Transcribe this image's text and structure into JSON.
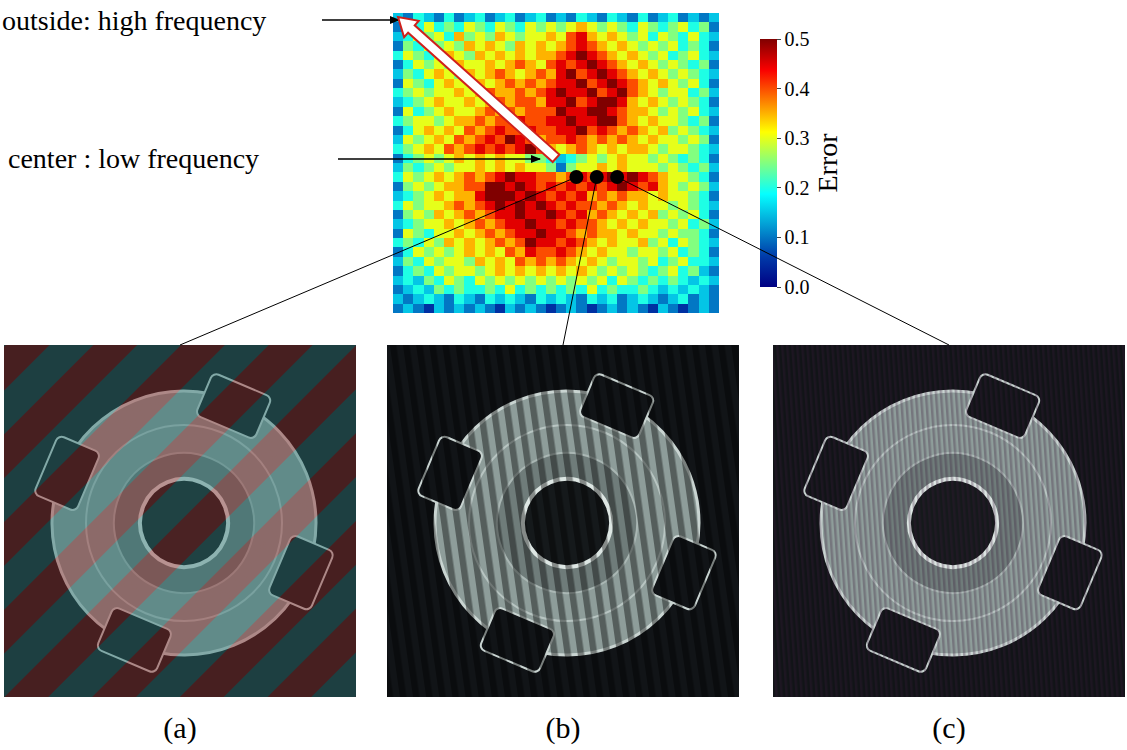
{
  "chart_data": {
    "type": "heatmap",
    "tick_labels": false,
    "z": [
      [
        0.15,
        0.1,
        0.2,
        0.15,
        0.1,
        0.2,
        0.1,
        0.15,
        0.2,
        0.1,
        0.15,
        0.2,
        0.1,
        0.15,
        0.2,
        0.1,
        0.15,
        0.1,
        0.2,
        0.15,
        0.1,
        0.2,
        0.15,
        0.1,
        0.2,
        0.1,
        0.15,
        0.2,
        0.1,
        0.15,
        0.1,
        0.15
      ],
      [
        0.1,
        0.25,
        0.2,
        0.3,
        0.2,
        0.25,
        0.2,
        0.3,
        0.25,
        0.2,
        0.3,
        0.25,
        0.2,
        0.3,
        0.25,
        0.3,
        0.25,
        0.3,
        0.35,
        0.3,
        0.25,
        0.3,
        0.25,
        0.2,
        0.3,
        0.25,
        0.2,
        0.25,
        0.3,
        0.2,
        0.25,
        0.1
      ],
      [
        0.15,
        0.2,
        0.3,
        0.25,
        0.3,
        0.2,
        0.35,
        0.25,
        0.3,
        0.25,
        0.35,
        0.3,
        0.25,
        0.3,
        0.3,
        0.35,
        0.3,
        0.4,
        0.45,
        0.35,
        0.3,
        0.35,
        0.3,
        0.25,
        0.3,
        0.2,
        0.3,
        0.25,
        0.2,
        0.3,
        0.2,
        0.15
      ],
      [
        0.1,
        0.25,
        0.2,
        0.3,
        0.25,
        0.3,
        0.25,
        0.35,
        0.3,
        0.35,
        0.3,
        0.25,
        0.35,
        0.3,
        0.35,
        0.3,
        0.35,
        0.4,
        0.45,
        0.4,
        0.35,
        0.3,
        0.35,
        0.3,
        0.25,
        0.3,
        0.25,
        0.3,
        0.2,
        0.25,
        0.2,
        0.1
      ],
      [
        0.2,
        0.3,
        0.25,
        0.2,
        0.3,
        0.35,
        0.3,
        0.25,
        0.35,
        0.3,
        0.35,
        0.3,
        0.35,
        0.3,
        0.35,
        0.35,
        0.4,
        0.45,
        0.5,
        0.45,
        0.4,
        0.35,
        0.3,
        0.35,
        0.3,
        0.25,
        0.3,
        0.2,
        0.25,
        0.3,
        0.2,
        0.15
      ],
      [
        0.1,
        0.2,
        0.3,
        0.25,
        0.3,
        0.25,
        0.35,
        0.3,
        0.3,
        0.35,
        0.3,
        0.35,
        0.4,
        0.35,
        0.3,
        0.4,
        0.45,
        0.4,
        0.45,
        0.5,
        0.45,
        0.4,
        0.35,
        0.3,
        0.35,
        0.3,
        0.25,
        0.3,
        0.25,
        0.2,
        0.25,
        0.1
      ],
      [
        0.15,
        0.25,
        0.2,
        0.3,
        0.35,
        0.3,
        0.25,
        0.35,
        0.3,
        0.35,
        0.4,
        0.35,
        0.3,
        0.35,
        0.4,
        0.35,
        0.45,
        0.5,
        0.4,
        0.45,
        0.5,
        0.45,
        0.4,
        0.35,
        0.3,
        0.35,
        0.3,
        0.25,
        0.3,
        0.25,
        0.2,
        0.15
      ],
      [
        0.1,
        0.3,
        0.25,
        0.2,
        0.3,
        0.35,
        0.3,
        0.3,
        0.35,
        0.3,
        0.35,
        0.4,
        0.35,
        0.4,
        0.35,
        0.4,
        0.45,
        0.45,
        0.5,
        0.4,
        0.45,
        0.5,
        0.45,
        0.4,
        0.35,
        0.3,
        0.35,
        0.3,
        0.25,
        0.3,
        0.2,
        0.1
      ],
      [
        0.2,
        0.25,
        0.3,
        0.25,
        0.3,
        0.3,
        0.35,
        0.3,
        0.35,
        0.4,
        0.35,
        0.35,
        0.4,
        0.35,
        0.4,
        0.45,
        0.5,
        0.45,
        0.45,
        0.5,
        0.4,
        0.45,
        0.5,
        0.4,
        0.35,
        0.3,
        0.25,
        0.3,
        0.3,
        0.2,
        0.25,
        0.15
      ],
      [
        0.15,
        0.2,
        0.25,
        0.3,
        0.35,
        0.3,
        0.3,
        0.35,
        0.3,
        0.35,
        0.4,
        0.35,
        0.4,
        0.4,
        0.35,
        0.45,
        0.45,
        0.5,
        0.4,
        0.45,
        0.5,
        0.5,
        0.45,
        0.35,
        0.3,
        0.35,
        0.3,
        0.25,
        0.3,
        0.25,
        0.2,
        0.1
      ],
      [
        0.1,
        0.3,
        0.2,
        0.25,
        0.3,
        0.35,
        0.3,
        0.3,
        0.35,
        0.4,
        0.35,
        0.4,
        0.35,
        0.4,
        0.4,
        0.4,
        0.5,
        0.45,
        0.45,
        0.5,
        0.5,
        0.45,
        0.4,
        0.35,
        0.35,
        0.3,
        0.25,
        0.3,
        0.25,
        0.3,
        0.2,
        0.15
      ],
      [
        0.2,
        0.25,
        0.3,
        0.3,
        0.25,
        0.3,
        0.35,
        0.35,
        0.4,
        0.35,
        0.4,
        0.4,
        0.45,
        0.4,
        0.4,
        0.45,
        0.45,
        0.5,
        0.45,
        0.45,
        0.5,
        0.5,
        0.4,
        0.35,
        0.3,
        0.35,
        0.3,
        0.3,
        0.25,
        0.2,
        0.25,
        0.1
      ],
      [
        0.1,
        0.2,
        0.3,
        0.35,
        0.3,
        0.35,
        0.3,
        0.4,
        0.35,
        0.4,
        0.45,
        0.4,
        0.4,
        0.45,
        0.4,
        0.4,
        0.45,
        0.45,
        0.5,
        0.4,
        0.45,
        0.4,
        0.35,
        0.4,
        0.35,
        0.3,
        0.35,
        0.25,
        0.3,
        0.25,
        0.2,
        0.15
      ],
      [
        0.15,
        0.3,
        0.25,
        0.3,
        0.35,
        0.3,
        0.4,
        0.35,
        0.4,
        0.45,
        0.4,
        0.5,
        0.45,
        0.4,
        0.35,
        0.4,
        0.4,
        0.45,
        0.4,
        0.35,
        0.4,
        0.35,
        0.4,
        0.35,
        0.3,
        0.35,
        0.3,
        0.3,
        0.25,
        0.3,
        0.25,
        0.1
      ],
      [
        0.2,
        0.25,
        0.3,
        0.35,
        0.3,
        0.4,
        0.35,
        0.4,
        0.45,
        0.4,
        0.45,
        0.4,
        0.45,
        0.5,
        0.4,
        0.35,
        0.3,
        0.35,
        0.4,
        0.35,
        0.3,
        0.35,
        0.3,
        0.35,
        0.35,
        0.3,
        0.25,
        0.3,
        0.3,
        0.25,
        0.2,
        0.15
      ],
      [
        0.1,
        0.2,
        0.25,
        0.3,
        0.25,
        0.3,
        0.35,
        0.3,
        0.35,
        0.3,
        0.35,
        0.3,
        0.3,
        0.25,
        0.25,
        0.2,
        0.15,
        0.2,
        0.25,
        0.3,
        0.25,
        0.3,
        0.35,
        0.3,
        0.3,
        0.25,
        0.3,
        0.25,
        0.2,
        0.25,
        0.2,
        0.1
      ],
      [
        0.15,
        0.25,
        0.2,
        0.25,
        0.3,
        0.25,
        0.3,
        0.3,
        0.35,
        0.3,
        0.35,
        0.3,
        0.35,
        0.3,
        0.3,
        0.25,
        0.1,
        0.25,
        0.3,
        0.3,
        0.35,
        0.3,
        0.35,
        0.3,
        0.3,
        0.3,
        0.25,
        0.3,
        0.25,
        0.2,
        0.25,
        0.15
      ],
      [
        0.2,
        0.3,
        0.25,
        0.3,
        0.35,
        0.3,
        0.35,
        0.4,
        0.35,
        0.4,
        0.45,
        0.5,
        0.45,
        0.45,
        0.4,
        0.4,
        0.35,
        0.4,
        0.45,
        0.4,
        0.45,
        0.5,
        0.45,
        0.5,
        0.45,
        0.4,
        0.35,
        0.3,
        0.3,
        0.25,
        0.2,
        0.1
      ],
      [
        0.1,
        0.25,
        0.3,
        0.25,
        0.3,
        0.35,
        0.35,
        0.4,
        0.4,
        0.5,
        0.5,
        0.45,
        0.5,
        0.45,
        0.4,
        0.45,
        0.4,
        0.45,
        0.4,
        0.45,
        0.4,
        0.45,
        0.5,
        0.45,
        0.4,
        0.45,
        0.35,
        0.3,
        0.25,
        0.3,
        0.25,
        0.15
      ],
      [
        0.15,
        0.2,
        0.25,
        0.3,
        0.35,
        0.3,
        0.35,
        0.35,
        0.45,
        0.5,
        0.5,
        0.5,
        0.45,
        0.5,
        0.45,
        0.4,
        0.45,
        0.4,
        0.45,
        0.35,
        0.4,
        0.35,
        0.4,
        0.35,
        0.35,
        0.3,
        0.35,
        0.3,
        0.3,
        0.25,
        0.2,
        0.1
      ],
      [
        0.2,
        0.3,
        0.25,
        0.3,
        0.3,
        0.35,
        0.4,
        0.35,
        0.4,
        0.45,
        0.5,
        0.45,
        0.5,
        0.45,
        0.5,
        0.45,
        0.4,
        0.45,
        0.4,
        0.4,
        0.35,
        0.4,
        0.35,
        0.3,
        0.35,
        0.3,
        0.3,
        0.25,
        0.3,
        0.25,
        0.2,
        0.15
      ],
      [
        0.1,
        0.25,
        0.3,
        0.25,
        0.35,
        0.3,
        0.35,
        0.4,
        0.35,
        0.4,
        0.45,
        0.45,
        0.5,
        0.45,
        0.45,
        0.5,
        0.45,
        0.4,
        0.45,
        0.35,
        0.4,
        0.35,
        0.3,
        0.35,
        0.3,
        0.35,
        0.25,
        0.3,
        0.25,
        0.3,
        0.2,
        0.1
      ],
      [
        0.15,
        0.2,
        0.25,
        0.3,
        0.3,
        0.35,
        0.3,
        0.35,
        0.4,
        0.35,
        0.4,
        0.45,
        0.45,
        0.5,
        0.45,
        0.45,
        0.4,
        0.45,
        0.4,
        0.4,
        0.35,
        0.3,
        0.35,
        0.3,
        0.35,
        0.3,
        0.3,
        0.25,
        0.3,
        0.2,
        0.25,
        0.15
      ],
      [
        0.1,
        0.3,
        0.25,
        0.2,
        0.3,
        0.3,
        0.35,
        0.3,
        0.35,
        0.4,
        0.35,
        0.4,
        0.45,
        0.45,
        0.5,
        0.45,
        0.45,
        0.4,
        0.35,
        0.4,
        0.35,
        0.35,
        0.3,
        0.35,
        0.3,
        0.3,
        0.25,
        0.3,
        0.25,
        0.25,
        0.2,
        0.1
      ],
      [
        0.2,
        0.25,
        0.2,
        0.3,
        0.25,
        0.35,
        0.3,
        0.35,
        0.3,
        0.35,
        0.4,
        0.35,
        0.4,
        0.5,
        0.45,
        0.45,
        0.4,
        0.45,
        0.4,
        0.35,
        0.3,
        0.35,
        0.3,
        0.3,
        0.35,
        0.25,
        0.3,
        0.2,
        0.3,
        0.25,
        0.2,
        0.15
      ],
      [
        0.1,
        0.2,
        0.3,
        0.25,
        0.3,
        0.25,
        0.3,
        0.35,
        0.3,
        0.35,
        0.3,
        0.4,
        0.35,
        0.45,
        0.4,
        0.4,
        0.45,
        0.4,
        0.35,
        0.3,
        0.35,
        0.3,
        0.3,
        0.25,
        0.3,
        0.3,
        0.25,
        0.3,
        0.2,
        0.25,
        0.2,
        0.1
      ],
      [
        0.15,
        0.25,
        0.2,
        0.3,
        0.25,
        0.3,
        0.3,
        0.25,
        0.35,
        0.3,
        0.35,
        0.3,
        0.4,
        0.35,
        0.4,
        0.35,
        0.4,
        0.35,
        0.3,
        0.35,
        0.3,
        0.25,
        0.3,
        0.3,
        0.25,
        0.3,
        0.2,
        0.25,
        0.3,
        0.2,
        0.2,
        0.15
      ],
      [
        0.1,
        0.2,
        0.25,
        0.2,
        0.3,
        0.25,
        0.3,
        0.3,
        0.25,
        0.3,
        0.35,
        0.3,
        0.35,
        0.3,
        0.35,
        0.3,
        0.35,
        0.3,
        0.35,
        0.3,
        0.25,
        0.3,
        0.25,
        0.3,
        0.25,
        0.2,
        0.25,
        0.3,
        0.2,
        0.25,
        0.15,
        0.1
      ],
      [
        0.15,
        0.2,
        0.15,
        0.25,
        0.2,
        0.3,
        0.25,
        0.2,
        0.3,
        0.25,
        0.3,
        0.25,
        0.3,
        0.25,
        0.3,
        0.25,
        0.3,
        0.25,
        0.3,
        0.25,
        0.3,
        0.2,
        0.3,
        0.25,
        0.2,
        0.25,
        0.2,
        0.25,
        0.2,
        0.15,
        0.2,
        0.15
      ],
      [
        0.1,
        0.15,
        0.2,
        0.15,
        0.25,
        0.2,
        0.25,
        0.2,
        0.2,
        0.25,
        0.2,
        0.3,
        0.2,
        0.25,
        0.2,
        0.25,
        0.2,
        0.25,
        0.2,
        0.3,
        0.2,
        0.25,
        0.2,
        0.2,
        0.25,
        0.2,
        0.15,
        0.2,
        0.15,
        0.2,
        0.15,
        0.1
      ],
      [
        0.15,
        0.1,
        0.15,
        0.2,
        0.15,
        0.1,
        0.2,
        0.15,
        0.1,
        0.2,
        0.15,
        0.2,
        0.15,
        0.1,
        0.2,
        0.15,
        0.2,
        0.15,
        0.1,
        0.2,
        0.15,
        0.2,
        0.1,
        0.15,
        0.2,
        0.15,
        0.1,
        0.15,
        0.2,
        0.1,
        0.15,
        0.1
      ],
      [
        0.1,
        0.15,
        0.1,
        0.05,
        0.15,
        0.1,
        0.15,
        0.1,
        0.15,
        0.1,
        0.05,
        0.15,
        0.1,
        0.15,
        0.1,
        0.05,
        0.1,
        0.15,
        0.1,
        0.05,
        0.1,
        0.15,
        0.1,
        0.15,
        0.1,
        0.05,
        0.15,
        0.1,
        0.05,
        0.1,
        0.15,
        0.1
      ]
    ],
    "colorbar": {
      "title": "Error",
      "range": [
        0,
        0.5
      ],
      "ticks": [
        {
          "value": 0,
          "label": "0.0"
        },
        0.1,
        0.2,
        0.3,
        0.4,
        0.5
      ]
    },
    "points": [
      [
        17.5,
        17
      ],
      [
        19.5,
        17
      ],
      [
        21.5,
        17
      ]
    ],
    "annotations": [
      {
        "text": "outside: high frequency"
      },
      {
        "text": "center : low frequency"
      }
    ],
    "panels": [
      {
        "label": "(a)"
      },
      {
        "label": "(b)"
      },
      {
        "label": "(c)"
      }
    ]
  }
}
